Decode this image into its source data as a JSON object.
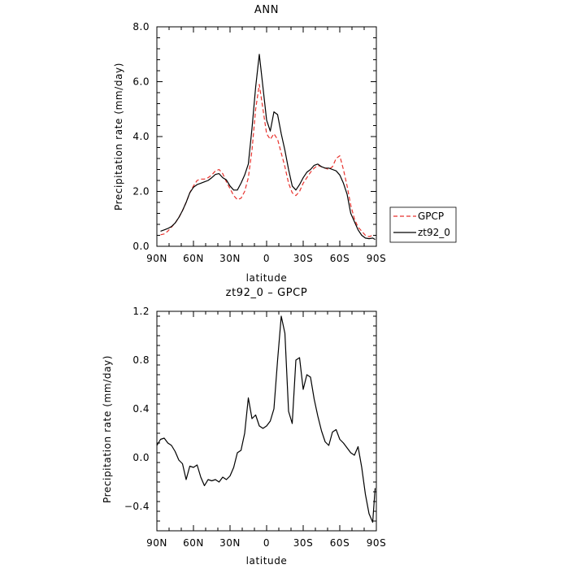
{
  "chart_data": [
    {
      "type": "line",
      "title": "ANN",
      "xlabel": "latitude",
      "ylabel": "Precipitation rate  (mm/day)",
      "xlim": [
        -90,
        90
      ],
      "ylim": [
        0.0,
        8.0
      ],
      "x_reversed": true,
      "xticks": [
        {
          "value": -90,
          "label": "90N"
        },
        {
          "value": -60,
          "label": "60N"
        },
        {
          "value": -30,
          "label": "30N"
        },
        {
          "value": 0,
          "label": "0"
        },
        {
          "value": 30,
          "label": "30S"
        },
        {
          "value": 60,
          "label": "60S"
        },
        {
          "value": 90,
          "label": "90S"
        }
      ],
      "yticks": [
        {
          "value": 0.0,
          "label": "0.0"
        },
        {
          "value": 2.0,
          "label": "2.0"
        },
        {
          "value": 4.0,
          "label": "4.0"
        },
        {
          "value": 6.0,
          "label": "6.0"
        },
        {
          "value": 8.0,
          "label": "8.0"
        }
      ],
      "grid": false,
      "legend_position": "right",
      "series": [
        {
          "name": "GPCP",
          "color": "#e8322d",
          "dashed": true,
          "points": [
            [
              -87,
              0.42
            ],
            [
              -84,
              0.45
            ],
            [
              -81,
              0.55
            ],
            [
              -78,
              0.7
            ],
            [
              -75,
              0.85
            ],
            [
              -72,
              1.05
            ],
            [
              -69,
              1.3
            ],
            [
              -66,
              1.6
            ],
            [
              -63,
              1.95
            ],
            [
              -60,
              2.2
            ],
            [
              -57,
              2.4
            ],
            [
              -54,
              2.45
            ],
            [
              -51,
              2.45
            ],
            [
              -48,
              2.5
            ],
            [
              -45,
              2.6
            ],
            [
              -42,
              2.75
            ],
            [
              -39,
              2.8
            ],
            [
              -36,
              2.65
            ],
            [
              -33,
              2.35
            ],
            [
              -30,
              2.1
            ],
            [
              -27,
              1.85
            ],
            [
              -24,
              1.7
            ],
            [
              -21,
              1.75
            ],
            [
              -18,
              2.0
            ],
            [
              -15,
              2.5
            ],
            [
              -12,
              3.5
            ],
            [
              -9,
              5.0
            ],
            [
              -6,
              5.9
            ],
            [
              -3,
              5.0
            ],
            [
              0,
              4.1
            ],
            [
              3,
              3.9
            ],
            [
              6,
              4.1
            ],
            [
              9,
              3.9
            ],
            [
              12,
              3.4
            ],
            [
              15,
              2.9
            ],
            [
              18,
              2.3
            ],
            [
              21,
              1.95
            ],
            [
              24,
              1.85
            ],
            [
              27,
              2.0
            ],
            [
              30,
              2.3
            ],
            [
              33,
              2.5
            ],
            [
              36,
              2.7
            ],
            [
              39,
              2.85
            ],
            [
              42,
              2.95
            ],
            [
              45,
              2.9
            ],
            [
              48,
              2.85
            ],
            [
              51,
              2.8
            ],
            [
              54,
              2.9
            ],
            [
              57,
              3.2
            ],
            [
              60,
              3.3
            ],
            [
              63,
              2.8
            ],
            [
              66,
              2.2
            ],
            [
              69,
              1.5
            ],
            [
              72,
              1.0
            ],
            [
              75,
              0.7
            ],
            [
              78,
              0.55
            ],
            [
              81,
              0.4
            ],
            [
              84,
              0.35
            ],
            [
              87,
              0.4
            ]
          ]
        },
        {
          "name": "zt92_0",
          "color": "#000000",
          "dashed": false,
          "points": [
            [
              -87,
              0.55
            ],
            [
              -84,
              0.6
            ],
            [
              -81,
              0.65
            ],
            [
              -78,
              0.72
            ],
            [
              -75,
              0.85
            ],
            [
              -72,
              1.05
            ],
            [
              -69,
              1.3
            ],
            [
              -66,
              1.6
            ],
            [
              -63,
              1.95
            ],
            [
              -60,
              2.15
            ],
            [
              -57,
              2.25
            ],
            [
              -54,
              2.3
            ],
            [
              -51,
              2.35
            ],
            [
              -48,
              2.4
            ],
            [
              -45,
              2.5
            ],
            [
              -42,
              2.62
            ],
            [
              -39,
              2.65
            ],
            [
              -36,
              2.5
            ],
            [
              -33,
              2.42
            ],
            [
              -30,
              2.2
            ],
            [
              -27,
              2.05
            ],
            [
              -24,
              2.05
            ],
            [
              -21,
              2.3
            ],
            [
              -18,
              2.6
            ],
            [
              -15,
              3.0
            ],
            [
              -12,
              4.3
            ],
            [
              -9,
              5.8
            ],
            [
              -6,
              7.0
            ],
            [
              -3,
              5.8
            ],
            [
              0,
              4.6
            ],
            [
              3,
              4.2
            ],
            [
              6,
              4.9
            ],
            [
              9,
              4.8
            ],
            [
              12,
              4.1
            ],
            [
              15,
              3.5
            ],
            [
              18,
              2.8
            ],
            [
              21,
              2.2
            ],
            [
              24,
              2.05
            ],
            [
              27,
              2.25
            ],
            [
              30,
              2.5
            ],
            [
              33,
              2.7
            ],
            [
              36,
              2.8
            ],
            [
              39,
              2.95
            ],
            [
              42,
              3.0
            ],
            [
              45,
              2.9
            ],
            [
              48,
              2.85
            ],
            [
              51,
              2.85
            ],
            [
              54,
              2.8
            ],
            [
              57,
              2.75
            ],
            [
              60,
              2.6
            ],
            [
              63,
              2.3
            ],
            [
              66,
              1.9
            ],
            [
              69,
              1.2
            ],
            [
              72,
              0.9
            ],
            [
              75,
              0.6
            ],
            [
              78,
              0.4
            ],
            [
              81,
              0.3
            ],
            [
              84,
              0.28
            ],
            [
              87,
              0.3
            ],
            [
              89,
              0.25
            ]
          ]
        }
      ]
    },
    {
      "type": "line",
      "title": "zt92_0 – GPCP",
      "xlabel": "latitude",
      "ylabel": "Precipitation rate  (mm/day)",
      "xlim": [
        -90,
        90
      ],
      "ylim": [
        -0.6,
        1.2
      ],
      "x_reversed": true,
      "xticks": [
        {
          "value": -90,
          "label": "90N"
        },
        {
          "value": -60,
          "label": "60N"
        },
        {
          "value": -30,
          "label": "30N"
        },
        {
          "value": 0,
          "label": "0"
        },
        {
          "value": 30,
          "label": "30S"
        },
        {
          "value": 60,
          "label": "60S"
        },
        {
          "value": 90,
          "label": "90S"
        }
      ],
      "yticks": [
        {
          "value": -0.4,
          "label": "−0.4"
        },
        {
          "value": 0.0,
          "label": "0.0"
        },
        {
          "value": 0.4,
          "label": "0.4"
        },
        {
          "value": 0.8,
          "label": "0.8"
        },
        {
          "value": 1.2,
          "label": "1.2"
        }
      ],
      "grid": false,
      "series": [
        {
          "name": "",
          "color": "#000000",
          "dashed": false,
          "points": [
            [
              -90,
              0.1
            ],
            [
              -87,
              0.15
            ],
            [
              -84,
              0.16
            ],
            [
              -81,
              0.12
            ],
            [
              -78,
              0.1
            ],
            [
              -75,
              0.05
            ],
            [
              -72,
              -0.02
            ],
            [
              -69,
              -0.05
            ],
            [
              -66,
              -0.18
            ],
            [
              -63,
              -0.07
            ],
            [
              -60,
              -0.08
            ],
            [
              -57,
              -0.06
            ],
            [
              -54,
              -0.16
            ],
            [
              -51,
              -0.23
            ],
            [
              -48,
              -0.18
            ],
            [
              -45,
              -0.19
            ],
            [
              -42,
              -0.18
            ],
            [
              -39,
              -0.2
            ],
            [
              -36,
              -0.16
            ],
            [
              -33,
              -0.18
            ],
            [
              -30,
              -0.15
            ],
            [
              -27,
              -0.08
            ],
            [
              -24,
              0.04
            ],
            [
              -21,
              0.06
            ],
            [
              -18,
              0.2
            ],
            [
              -15,
              0.49
            ],
            [
              -12,
              0.32
            ],
            [
              -9,
              0.35
            ],
            [
              -6,
              0.26
            ],
            [
              -3,
              0.24
            ],
            [
              0,
              0.26
            ],
            [
              3,
              0.3
            ],
            [
              6,
              0.4
            ],
            [
              9,
              0.8
            ],
            [
              12,
              1.16
            ],
            [
              15,
              1.02
            ],
            [
              18,
              0.38
            ],
            [
              21,
              0.28
            ],
            [
              24,
              0.8
            ],
            [
              27,
              0.82
            ],
            [
              30,
              0.56
            ],
            [
              33,
              0.68
            ],
            [
              36,
              0.66
            ],
            [
              39,
              0.48
            ],
            [
              42,
              0.34
            ],
            [
              45,
              0.22
            ],
            [
              48,
              0.13
            ],
            [
              51,
              0.1
            ],
            [
              54,
              0.21
            ],
            [
              57,
              0.23
            ],
            [
              60,
              0.15
            ],
            [
              63,
              0.12
            ],
            [
              66,
              0.08
            ],
            [
              69,
              0.04
            ],
            [
              72,
              0.02
            ],
            [
              75,
              0.09
            ],
            [
              78,
              -0.08
            ],
            [
              81,
              -0.3
            ],
            [
              84,
              -0.46
            ],
            [
              87,
              -0.53
            ],
            [
              89,
              -0.25
            ]
          ]
        }
      ]
    }
  ]
}
